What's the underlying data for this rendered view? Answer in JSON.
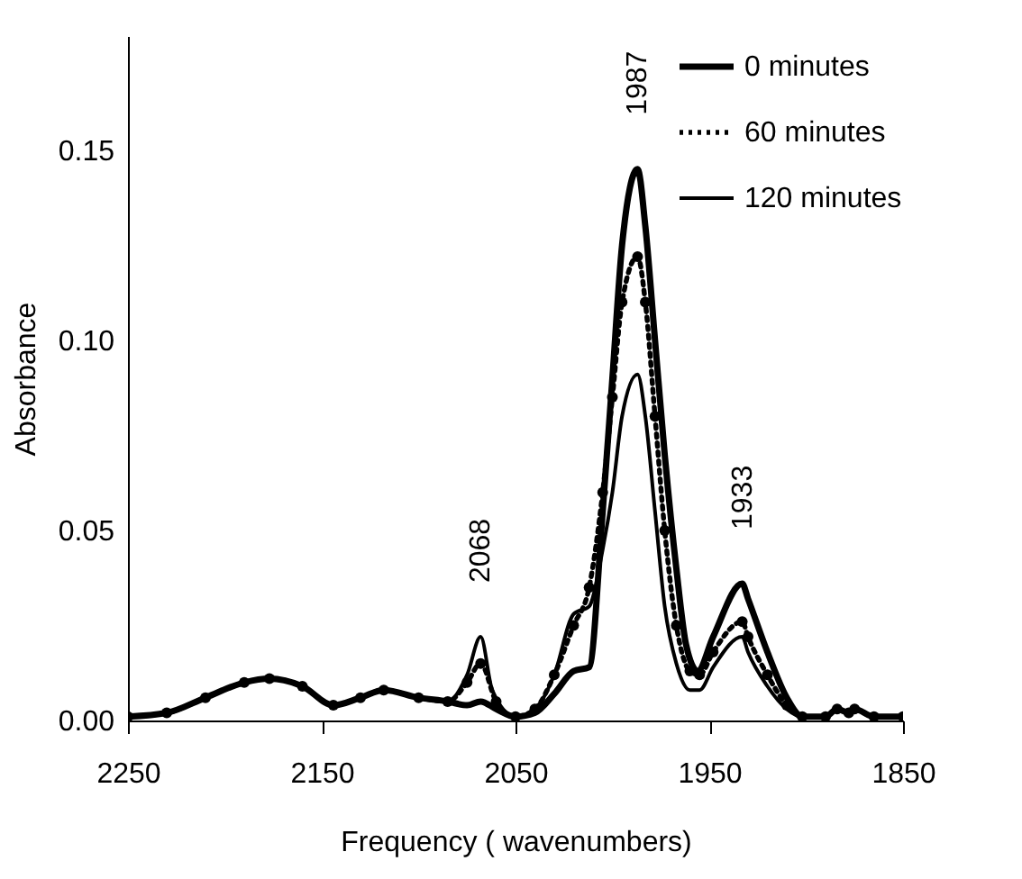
{
  "chart_data": {
    "type": "line",
    "xlabel": "Frequency  ( wavenumbers)",
    "ylabel": "Absorbance",
    "xlim": [
      2250,
      1850
    ],
    "xticks": [
      2250,
      2150,
      2050,
      1950,
      1850
    ],
    "ylim": [
      0,
      0.18
    ],
    "yticks": [
      {
        "value": 0,
        "label": "0.00"
      },
      {
        "value": 0.05,
        "label": "0.05"
      },
      {
        "value": 0.1,
        "label": "0.10"
      },
      {
        "value": 0.15,
        "label": "0.15"
      }
    ],
    "grid": false,
    "legend": "top right",
    "annotations": [
      {
        "text": "1987",
        "x": 1987,
        "y": 0.145
      },
      {
        "text": "2068",
        "x": 2068,
        "y": 0.022
      },
      {
        "text": "1933",
        "x": 1933,
        "y": 0.036
      }
    ],
    "series": [
      {
        "name": "0 minutes",
        "color": "#000000",
        "line_style": "solid",
        "marker": "none",
        "x": [
          2250,
          2230,
          2210,
          2190,
          2177,
          2160,
          2144,
          2130,
          2118,
          2100,
          2085,
          2075,
          2068,
          2060,
          2050,
          2040,
          2030,
          2020,
          2012,
          2005,
          2000,
          1995,
          1987,
          1983,
          1978,
          1973,
          1967,
          1962,
          1956,
          1948,
          1933,
          1930,
          1920,
          1910,
          1902,
          1890,
          1884,
          1878,
          1875,
          1865,
          1850
        ],
        "values": [
          0.001,
          0.002,
          0.006,
          0.01,
          0.011,
          0.009,
          0.004,
          0.006,
          0.008,
          0.006,
          0.005,
          0.004,
          0.005,
          0.003,
          0.001,
          0.002,
          0.007,
          0.013,
          0.014,
          0.055,
          0.09,
          0.125,
          0.145,
          0.13,
          0.1,
          0.07,
          0.04,
          0.02,
          0.013,
          0.022,
          0.036,
          0.032,
          0.018,
          0.006,
          0.001,
          0.001,
          0.003,
          0.002,
          0.003,
          0.001,
          0.001
        ]
      },
      {
        "name": "60 minutes",
        "color": "#000000",
        "line_style": "dotted",
        "marker": "circle",
        "x": [
          2250,
          2230,
          2210,
          2190,
          2177,
          2160,
          2144,
          2130,
          2118,
          2100,
          2085,
          2075,
          2068,
          2060,
          2050,
          2040,
          2030,
          2020,
          2012,
          2005,
          2000,
          1995,
          1987,
          1983,
          1978,
          1973,
          1967,
          1960,
          1955,
          1948,
          1933,
          1930,
          1920,
          1910,
          1902,
          1890,
          1884,
          1878,
          1875,
          1865,
          1850
        ],
        "values": [
          0.001,
          0.002,
          0.006,
          0.01,
          0.011,
          0.009,
          0.004,
          0.006,
          0.008,
          0.006,
          0.005,
          0.01,
          0.015,
          0.005,
          0.001,
          0.003,
          0.012,
          0.025,
          0.035,
          0.06,
          0.085,
          0.11,
          0.122,
          0.11,
          0.08,
          0.05,
          0.025,
          0.013,
          0.012,
          0.018,
          0.026,
          0.022,
          0.012,
          0.004,
          0.001,
          0.001,
          0.003,
          0.002,
          0.003,
          0.001,
          0.001
        ]
      },
      {
        "name": "120 minutes",
        "color": "#000000",
        "line_style": "solid",
        "marker": "none",
        "x": [
          2250,
          2230,
          2210,
          2190,
          2177,
          2160,
          2144,
          2130,
          2118,
          2100,
          2085,
          2075,
          2068,
          2062,
          2050,
          2040,
          2030,
          2020,
          2012,
          2005,
          2000,
          1995,
          1987,
          1983,
          1978,
          1973,
          1967,
          1960,
          1955,
          1948,
          1933,
          1930,
          1920,
          1910,
          1902,
          1890,
          1884,
          1878,
          1875,
          1865,
          1850
        ],
        "values": [
          0.001,
          0.002,
          0.006,
          0.01,
          0.011,
          0.009,
          0.004,
          0.006,
          0.008,
          0.006,
          0.005,
          0.012,
          0.022,
          0.008,
          0.001,
          0.003,
          0.012,
          0.028,
          0.03,
          0.045,
          0.06,
          0.08,
          0.091,
          0.08,
          0.055,
          0.03,
          0.015,
          0.008,
          0.008,
          0.014,
          0.022,
          0.018,
          0.009,
          0.003,
          0.001,
          0.001,
          0.003,
          0.002,
          0.003,
          0.001,
          0.001
        ]
      }
    ]
  }
}
